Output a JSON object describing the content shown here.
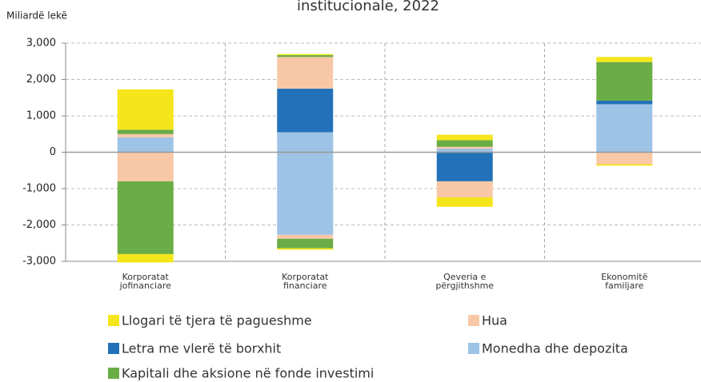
{
  "chart_data": {
    "type": "stacked_bar",
    "title": "institucionale, 2022",
    "y_label": "Miliardë lekë",
    "categories": [
      "Korporatat jofinanciare",
      "Korporatat financiare",
      "Qeveria e përgjithshme",
      "Ekonomitë familjare"
    ],
    "ylim": [
      -3000,
      3000
    ],
    "yticks": [
      {
        "value": 3000,
        "label": "3,000"
      },
      {
        "value": 2000,
        "label": "2,000"
      },
      {
        "value": 1000,
        "label": "1,000"
      },
      0,
      {
        "value": -1000,
        "label": "-1,000"
      },
      {
        "value": -2000,
        "label": "-2,000"
      },
      {
        "value": -3000,
        "label": "-3,000"
      }
    ],
    "grid": true,
    "series": [
      {
        "name": "Llogari të tjera të pagueshme",
        "color": "#f5e51b",
        "values": [
          1110,
          30,
          150,
          140
        ],
        "negative_values": [
          -230,
          -40,
          -260,
          -40
        ]
      },
      {
        "name": "Hua",
        "color": "#f8c8a6",
        "values": [
          90,
          870,
          50,
          0
        ],
        "negative_values": [
          -800,
          -110,
          -440,
          -330
        ]
      },
      {
        "name": "Letra me vlerë të borxhit",
        "color": "#2372b9",
        "values": [
          0,
          1200,
          0,
          100
        ],
        "negative_values": [
          0,
          0,
          -800,
          0
        ]
      },
      {
        "name": "Monedha dhe depozita",
        "color": "#9dc3e6",
        "values": [
          410,
          550,
          100,
          1320
        ],
        "negative_values": [
          0,
          -2270,
          0,
          0
        ]
      },
      {
        "name": "Kapitali dhe aksione në fonde investimi",
        "color": "#6aac46",
        "values": [
          120,
          50,
          180,
          1060
        ],
        "negative_values": [
          -2000,
          -260,
          0,
          0
        ]
      }
    ]
  }
}
